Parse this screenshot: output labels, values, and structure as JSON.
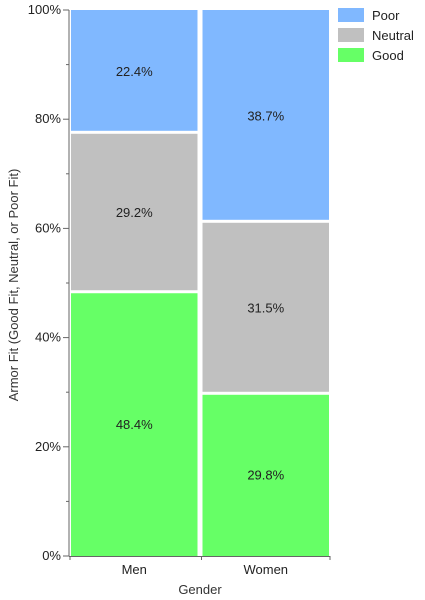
{
  "chart_data": {
    "type": "bar",
    "stacked": true,
    "categories": [
      "Men",
      "Women"
    ],
    "series": [
      {
        "name": "Good",
        "values": [
          48.4,
          29.8
        ],
        "color": "#66ff66"
      },
      {
        "name": "Neutral",
        "values": [
          29.2,
          31.5
        ],
        "color": "#c0c0c0"
      },
      {
        "name": "Poor",
        "values": [
          22.4,
          38.7
        ],
        "color": "#80b8ff"
      }
    ],
    "data_labels": [
      [
        "48.4%",
        "29.2%",
        "22.4%"
      ],
      [
        "29.8%",
        "31.5%",
        "38.7%"
      ]
    ],
    "xlabel": "Gender",
    "ylabel": "Armor Fit (Good Fit, Neutral, or Poor Fit)",
    "ylim": [
      0,
      100
    ],
    "y_ticks": [
      "0%",
      "20%",
      "40%",
      "60%",
      "80%",
      "100%"
    ],
    "legend": {
      "placement": "top-right",
      "items": [
        {
          "label": "Poor",
          "color": "#80b8ff"
        },
        {
          "label": "Neutral",
          "color": "#c0c0c0"
        },
        {
          "label": "Good",
          "color": "#66ff66"
        }
      ]
    },
    "grid": false
  }
}
